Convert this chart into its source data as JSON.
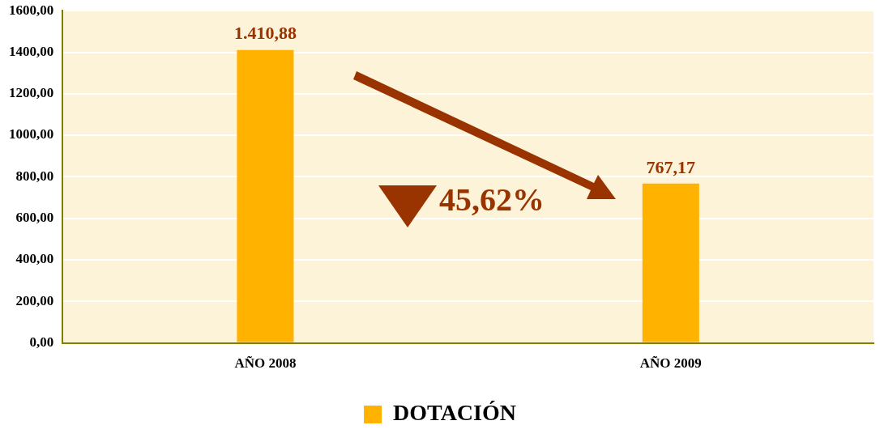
{
  "chart_data": {
    "type": "bar",
    "categories": [
      "AÑO 2008",
      "AÑO 2009"
    ],
    "series": [
      {
        "name": "DOTACIÓN",
        "color": "#ffb300",
        "values": [
          1410.88,
          767.17
        ],
        "value_labels": [
          "1.410,88",
          "767,17"
        ]
      }
    ],
    "ylim": [
      0,
      1600
    ],
    "yticks": [
      {
        "value": 0,
        "label": "0,00"
      },
      {
        "value": 200,
        "label": "200,00"
      },
      {
        "value": 400,
        "label": "400,00"
      },
      {
        "value": 600,
        "label": "600,00"
      },
      {
        "value": 800,
        "label": "800,00"
      },
      {
        "value": 1000,
        "label": "1000,00"
      },
      {
        "value": 1200,
        "label": "1200,00"
      },
      {
        "value": 1400,
        "label": "1400,00"
      },
      {
        "value": 1600,
        "label": "1600,00"
      }
    ],
    "annotations": [
      "45,62%"
    ],
    "grid": "y",
    "legend": "bottom"
  }
}
